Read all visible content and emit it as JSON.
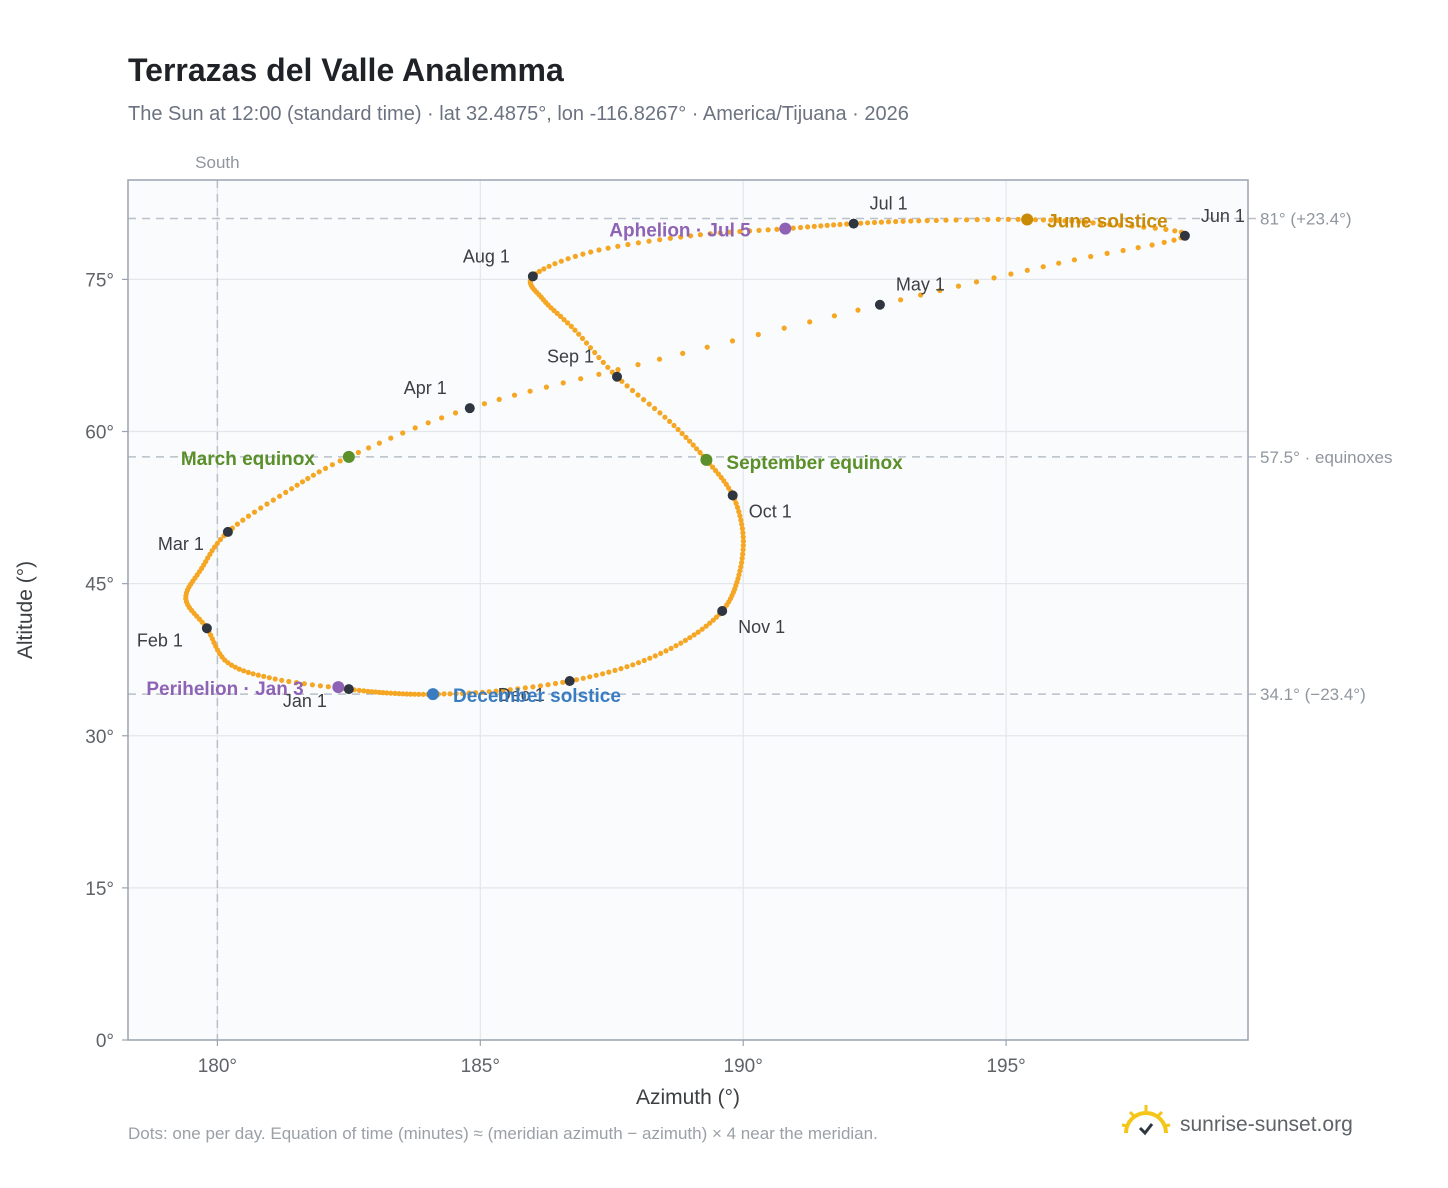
{
  "header": {
    "title": "Terrazas del Valle Analemma",
    "subtitle": "The Sun at 12:00 (standard time) · lat 32.4875°, lon -116.8267° · America/Tijuana · 2026"
  },
  "footer": {
    "note": "Dots: one per day. Equation of time (minutes) ≈ (meridian azimuth − azimuth) × 4 near the meridian.",
    "brand": "sunrise-sunset.org"
  },
  "colors": {
    "curve": "#f5a623",
    "month_marker": "#2f3640",
    "equinox": "#5a8f29",
    "june_solstice": "#c98a06",
    "december_solstice": "#3a7cc1",
    "perihelion_aphelion": "#8e63b5",
    "plot_bg": "#f9fbfd",
    "grid": "#e3e7ec",
    "reference_line": "#b9c0c8"
  },
  "chart_data": {
    "type": "scatter",
    "xlabel": "Azimuth (°)",
    "ylabel": "Altitude (°)",
    "xlim": [
      178.3,
      199.6
    ],
    "ylim": [
      0,
      84.8
    ],
    "x_ticks": [
      180,
      185,
      190,
      195
    ],
    "x_tick_labels": [
      "180°",
      "185°",
      "190°",
      "195°"
    ],
    "y_ticks": [
      0,
      15,
      30,
      45,
      60,
      75
    ],
    "y_tick_labels": [
      "0°",
      "15°",
      "30°",
      "45°",
      "60°",
      "75°"
    ],
    "grid": true,
    "reference_lines": [
      {
        "axis": "y",
        "value": 81.0,
        "label": "81° (+23.4°)"
      },
      {
        "axis": "y",
        "value": 57.5,
        "label": "57.5° · equinoxes"
      },
      {
        "axis": "y",
        "value": 34.1,
        "label": "34.1° (−23.4°)"
      },
      {
        "axis": "x",
        "value": 180,
        "label": "South"
      }
    ],
    "analemma_path": [
      {
        "x": 182.5,
        "y": 34.6
      },
      {
        "x": 181.1,
        "y": 35.6
      },
      {
        "x": 180.2,
        "y": 37.2
      },
      {
        "x": 179.8,
        "y": 40.6
      },
      {
        "x": 179.4,
        "y": 43.5
      },
      {
        "x": 179.7,
        "y": 46.5
      },
      {
        "x": 180.2,
        "y": 50.1
      },
      {
        "x": 181.3,
        "y": 54.0
      },
      {
        "x": 182.5,
        "y": 57.5
      },
      {
        "x": 184.8,
        "y": 62.3
      },
      {
        "x": 188.0,
        "y": 66.6
      },
      {
        "x": 192.6,
        "y": 72.5
      },
      {
        "x": 196.0,
        "y": 76.6
      },
      {
        "x": 198.4,
        "y": 79.3
      },
      {
        "x": 196.8,
        "y": 80.5
      },
      {
        "x": 195.4,
        "y": 80.9
      },
      {
        "x": 193.5,
        "y": 80.8
      },
      {
        "x": 192.1,
        "y": 80.5
      },
      {
        "x": 190.8,
        "y": 80.0
      },
      {
        "x": 189.0,
        "y": 79.3
      },
      {
        "x": 187.1,
        "y": 77.7
      },
      {
        "x": 186.0,
        "y": 75.3
      },
      {
        "x": 186.2,
        "y": 73.0
      },
      {
        "x": 186.8,
        "y": 70.0
      },
      {
        "x": 187.6,
        "y": 65.4
      },
      {
        "x": 188.6,
        "y": 61.0
      },
      {
        "x": 189.3,
        "y": 57.2
      },
      {
        "x": 189.8,
        "y": 53.7
      },
      {
        "x": 190.0,
        "y": 49.6
      },
      {
        "x": 189.9,
        "y": 45.5
      },
      {
        "x": 189.6,
        "y": 42.3
      },
      {
        "x": 188.9,
        "y": 39.4
      },
      {
        "x": 187.9,
        "y": 37.0
      },
      {
        "x": 186.7,
        "y": 35.4
      },
      {
        "x": 185.3,
        "y": 34.4
      },
      {
        "x": 184.1,
        "y": 34.1
      },
      {
        "x": 183.3,
        "y": 34.2
      },
      {
        "x": 182.5,
        "y": 34.6
      }
    ],
    "month_markers": [
      {
        "label": "Jan 1",
        "x": 182.5,
        "y": 34.6
      },
      {
        "label": "Feb 1",
        "x": 179.8,
        "y": 40.6
      },
      {
        "label": "Mar 1",
        "x": 180.2,
        "y": 50.1
      },
      {
        "label": "Apr 1",
        "x": 184.8,
        "y": 62.3
      },
      {
        "label": "May 1",
        "x": 192.6,
        "y": 72.5
      },
      {
        "label": "Jun 1",
        "x": 198.4,
        "y": 79.3
      },
      {
        "label": "Jul 1",
        "x": 192.1,
        "y": 80.5
      },
      {
        "label": "Aug 1",
        "x": 186.0,
        "y": 75.3
      },
      {
        "label": "Sep 1",
        "x": 187.6,
        "y": 65.4
      },
      {
        "label": "Oct 1",
        "x": 189.8,
        "y": 53.7
      },
      {
        "label": "Nov 1",
        "x": 189.6,
        "y": 42.3
      },
      {
        "label": "Dec 1",
        "x": 186.7,
        "y": 35.4
      }
    ],
    "events": [
      {
        "label": "March equinox",
        "x": 182.5,
        "y": 57.5,
        "kind": "equinox"
      },
      {
        "label": "September equinox",
        "x": 189.3,
        "y": 57.2,
        "kind": "equinox"
      },
      {
        "label": "June solstice",
        "x": 195.4,
        "y": 80.9,
        "kind": "june_solstice"
      },
      {
        "label": "December solstice",
        "x": 184.1,
        "y": 34.1,
        "kind": "december_solstice"
      },
      {
        "label": "Aphelion · Jul 5",
        "x": 190.8,
        "y": 80.0,
        "kind": "perihelion_aphelion"
      },
      {
        "label": "Perihelion · Jan 3",
        "x": 182.3,
        "y": 34.8,
        "kind": "perihelion_aphelion"
      }
    ]
  }
}
